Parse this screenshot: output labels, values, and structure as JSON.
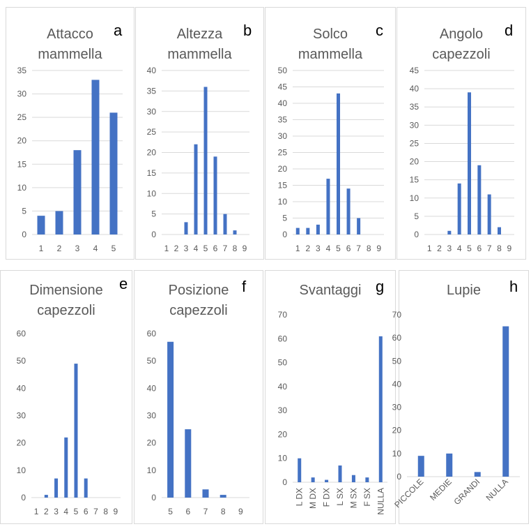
{
  "colors": {
    "bar": "#4472c4",
    "grid": "#d9d9d9",
    "text": "#595959",
    "letter": "#000000"
  },
  "chart_data": [
    {
      "type": "bar",
      "letter": "a",
      "title": [
        "Attacco",
        "mammella"
      ],
      "categories": [
        "1",
        "2",
        "3",
        "4",
        "5"
      ],
      "values": [
        4,
        5,
        18,
        33,
        26
      ],
      "ylim": [
        0,
        35
      ],
      "yticks": [
        0,
        5,
        10,
        15,
        20,
        25,
        30,
        35
      ],
      "grid": true,
      "xlabel": "",
      "ylabel": ""
    },
    {
      "type": "bar",
      "letter": "b",
      "title": [
        "Altezza",
        "mammella"
      ],
      "categories": [
        "1",
        "2",
        "3",
        "4",
        "5",
        "6",
        "7",
        "8",
        "9"
      ],
      "values": [
        0,
        0,
        3,
        22,
        36,
        19,
        5,
        1,
        0
      ],
      "ylim": [
        0,
        40
      ],
      "yticks": [
        0,
        5,
        10,
        15,
        20,
        25,
        30,
        35,
        40
      ],
      "grid": true,
      "xlabel": "",
      "ylabel": ""
    },
    {
      "type": "bar",
      "letter": "c",
      "title": [
        "Solco",
        "mammella"
      ],
      "categories": [
        "1",
        "2",
        "3",
        "4",
        "5",
        "6",
        "7",
        "8",
        "9"
      ],
      "values": [
        2,
        2,
        3,
        17,
        43,
        14,
        5,
        0,
        0
      ],
      "ylim": [
        0,
        50
      ],
      "yticks": [
        0,
        5,
        10,
        15,
        20,
        25,
        30,
        35,
        40,
        45,
        50
      ],
      "grid": true,
      "xlabel": "",
      "ylabel": ""
    },
    {
      "type": "bar",
      "letter": "d",
      "title": [
        "Angolo",
        "capezzoli"
      ],
      "categories": [
        "1",
        "2",
        "3",
        "4",
        "5",
        "6",
        "7",
        "8",
        "9"
      ],
      "values": [
        0,
        0,
        1,
        14,
        39,
        19,
        11,
        2,
        0
      ],
      "ylim": [
        0,
        45
      ],
      "yticks": [
        0,
        5,
        10,
        15,
        20,
        25,
        30,
        35,
        40,
        45
      ],
      "grid": true,
      "xlabel": "",
      "ylabel": ""
    },
    {
      "type": "bar",
      "letter": "e",
      "title": [
        "Dimensione",
        "capezzoli"
      ],
      "categories": [
        "1",
        "2",
        "3",
        "4",
        "5",
        "6",
        "7",
        "8",
        "9"
      ],
      "values": [
        0,
        1,
        7,
        22,
        49,
        7,
        0,
        0,
        0
      ],
      "ylim": [
        0,
        60
      ],
      "yticks": [
        0,
        10,
        20,
        30,
        40,
        50,
        60
      ],
      "grid": false,
      "xlabel": "",
      "ylabel": ""
    },
    {
      "type": "bar",
      "letter": "f",
      "title": [
        "Posizione",
        "capezzoli"
      ],
      "categories": [
        "5",
        "6",
        "7",
        "8",
        "9"
      ],
      "values": [
        57,
        25,
        3,
        1,
        0
      ],
      "ylim": [
        0,
        60
      ],
      "yticks": [
        0,
        10,
        20,
        30,
        40,
        50,
        60
      ],
      "grid": false,
      "xlabel": "",
      "ylabel": ""
    },
    {
      "type": "bar",
      "letter": "g",
      "title": [
        "Svantaggi"
      ],
      "categories": [
        "L DX",
        "M DX",
        "F DX",
        "L SX",
        "M SX",
        "F SX",
        "NULLA"
      ],
      "values": [
        10,
        2,
        1,
        7,
        3,
        2,
        61
      ],
      "ylim": [
        0,
        70
      ],
      "yticks": [
        0,
        10,
        20,
        30,
        40,
        50,
        60,
        70
      ],
      "grid": false,
      "xlabel": "",
      "ylabel": ""
    },
    {
      "type": "bar",
      "letter": "h",
      "title": [
        "Lupie"
      ],
      "categories": [
        "PICCOLE",
        "MEDIE",
        "GRANDI",
        "NULLA"
      ],
      "values": [
        9,
        10,
        2,
        65
      ],
      "ylim": [
        0,
        70
      ],
      "yticks": [
        0,
        10,
        20,
        30,
        40,
        50,
        60,
        70
      ],
      "grid": false,
      "xlabel": "",
      "ylabel": ""
    }
  ]
}
